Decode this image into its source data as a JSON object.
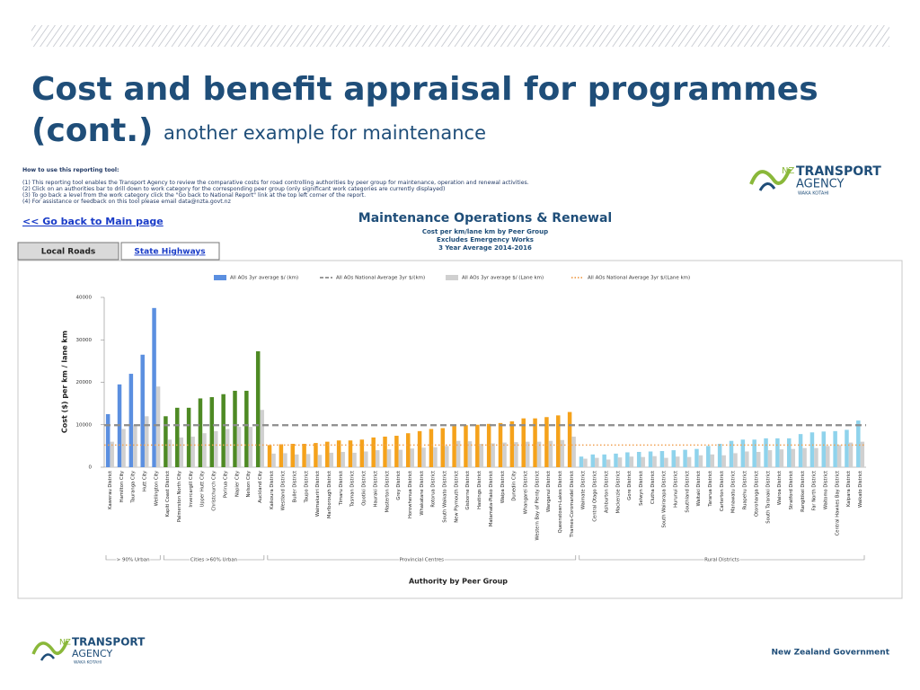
{
  "slide": {
    "title": "Cost and benefit appraisal for programmes",
    "title_line2": "(cont.)",
    "subtitle": "another example for maintenance"
  },
  "instructions": {
    "heading": "How to use this reporting tool:",
    "lines": [
      "(1) This reporting tool enables the Transport Agency to review the comparative costs for road controlling authorities by peer group for maintenance, operation and renewal activities.",
      "(2) Click on an authorities bar to drill down to work category for the corresponding peer group (only significant work categories are currently displayed)",
      "(3) To go back a level from the work category click the \"Go back to National Report\" link at the top left corner of the report.",
      "(4) For assistance or feedback on this tool please email data@nzta.govt.nz"
    ]
  },
  "nav": {
    "back_link": "<< Go back to Main page",
    "tabs": [
      "Local Roads",
      "State Highways"
    ]
  },
  "logo": {
    "nz": "NZ",
    "transport": "TRANSPORT",
    "agency": "AGENCY",
    "maori": "WAKA KOTAHI"
  },
  "footer": {
    "government": "New Zealand Government"
  },
  "chart_data": {
    "type": "bar",
    "title": "Maintenance Operations & Renewal",
    "subtitles": [
      "Cost per km/lane km by Peer Group",
      "Excludes Emergency Works",
      "3 Year Average 2014-2016"
    ],
    "x_label": "Authority by Peer Group",
    "y_label": "Cost ($) per km / lane km",
    "ylim": [
      0,
      40000
    ],
    "yticks": [
      0,
      10000,
      20000,
      30000,
      40000
    ],
    "categories": [
      "Kawerau District",
      "Hamilton City",
      "Tauranga City",
      "Hutt City",
      "Wellington City",
      "Kapiti Coast District",
      "Palmerston North City",
      "Invercargill City",
      "Upper Hutt City",
      "Christchurch City",
      "Porirua City",
      "Napier City",
      "Nelson City",
      "Auckland City",
      "Kaikoura District",
      "Westland District",
      "Buller District",
      "Taupo District",
      "Waimakariri District",
      "Marlborough District",
      "Timaru District",
      "Tasman District",
      "Opotiki District",
      "Hauraki District",
      "Masterton District",
      "Grey District",
      "Horowhenua District",
      "Whakatane District",
      "Rotorua District",
      "South Waikato District",
      "New Plymouth District",
      "Gisborne District",
      "Hastings District",
      "Matamata-Piako District",
      "Waipa District",
      "Dunedin City",
      "Whangarei District",
      "Western Bay of Plenty District",
      "Wanganui District",
      "Queenstown-Lakes District",
      "Thames-Coromandel District",
      "Waimate District",
      "Central Otago District",
      "Ashburton District",
      "Mackenzie District",
      "Gore District",
      "Selwyn District",
      "Clutha District",
      "South Wairarapa District",
      "Hurunui District",
      "Southland District",
      "Waitaki District",
      "Tararua District",
      "Carterton District",
      "Manawatu District",
      "Ruapehu District",
      "Otorohanga District",
      "South Taranaki District",
      "Wairoa District",
      "Stratford District",
      "Rangitikei District",
      "Far North District",
      "Waitomo District",
      "Central Hawkes Bay District",
      "Kaipara District",
      "Waikato District"
    ],
    "groups": [
      {
        "name": "> 90% Urban",
        "color": "#5b8fe0",
        "count": 5
      },
      {
        "name": "Cities >60% Urban",
        "color": "#4e8a24",
        "count": 9
      },
      {
        "name": "Provincial Centres",
        "color": "#f5a21b",
        "count": 27
      },
      {
        "name": "Rural Districts",
        "color": "#8fd3ec",
        "count": 25
      }
    ],
    "series": [
      {
        "name": "All AOs 3yr average $/ (km)",
        "color": "#5b8fe0",
        "values": [
          12500,
          19500,
          22000,
          26500,
          37500,
          12000,
          14000,
          14000,
          16200,
          16500,
          17200,
          18000,
          18000,
          27300,
          5200,
          5400,
          5500,
          5500,
          5700,
          6000,
          6300,
          6300,
          6500,
          7000,
          7200,
          7400,
          8000,
          8500,
          9000,
          9200,
          9700,
          9900,
          10000,
          10200,
          10400,
          10800,
          11500,
          11500,
          11800,
          12200,
          13000,
          2500,
          3000,
          3000,
          3200,
          3500,
          3600,
          3700,
          3800,
          4000,
          4100,
          4300,
          5000,
          5500,
          6200,
          6500,
          6500,
          6800,
          6800,
          6800,
          7800,
          8200,
          8400,
          8500,
          8800,
          11000
        ]
      },
      {
        "name": "All AOs National Average 3yr $/(km)",
        "color": "#8c8c8c",
        "line": "dashed",
        "value": 9900
      },
      {
        "name": "All AOs 3yr average $/ (Lane km)",
        "color": "#d0d0d0",
        "values": [
          6000,
          9000,
          10000,
          12000,
          19000,
          6500,
          7000,
          7200,
          8000,
          8500,
          9000,
          9500,
          9500,
          13500,
          3200,
          3300,
          3000,
          3100,
          2900,
          3400,
          3600,
          3400,
          3700,
          4000,
          4200,
          4100,
          4400,
          4600,
          4700,
          5000,
          6200,
          6100,
          5500,
          5600,
          5800,
          5900,
          6000,
          6000,
          6200,
          6400,
          7200,
          2000,
          2200,
          1800,
          2300,
          2500,
          2400,
          2600,
          2200,
          2500,
          2400,
          2800,
          3000,
          2800,
          3300,
          3700,
          3600,
          4000,
          4200,
          4300,
          4500,
          4500,
          5000,
          5200,
          5800,
          6000
        ]
      },
      {
        "name": "All AOs National Average 3yr $/(Lane km)",
        "color": "#f0a050",
        "line": "dotted",
        "value": 5200
      }
    ]
  }
}
